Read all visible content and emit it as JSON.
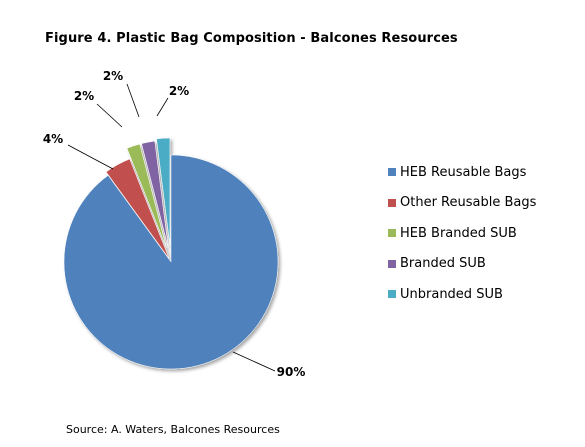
{
  "chart_data": {
    "type": "pie",
    "title": "Figure 4. Plastic Bag Composition - Balcones Resources",
    "categories": [
      "HEB Reusable Bags",
      "Other Reusable Bags",
      "HEB Branded SUB",
      "Branded SUB",
      "Unbranded SUB"
    ],
    "values": [
      90,
      4,
      2,
      2,
      2
    ],
    "data_labels": [
      "90%",
      "4%",
      "2%",
      "2%",
      "2%"
    ],
    "colors": [
      "#4F81BD",
      "#C0504D",
      "#9BBB59",
      "#8064A2",
      "#4BACC6"
    ],
    "exploded": true,
    "legend_position": "right",
    "note": "Source: A. Waters, Balcones Resources"
  }
}
